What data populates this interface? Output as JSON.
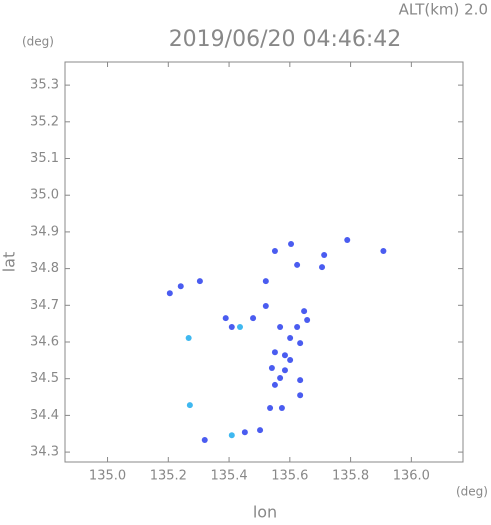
{
  "chart_data": {
    "type": "scatter",
    "title": "2019/06/20 04:46:42",
    "subtitle": "ALT(km) 2.0",
    "y_unit": "(deg)",
    "x_unit": "(deg)",
    "xlabel": "lon",
    "ylabel": "lat",
    "xlim": [
      134.86,
      136.17
    ],
    "ylim": [
      34.273,
      35.363
    ],
    "xticks": [
      {
        "value": 135,
        "label": "135.0"
      },
      135.2,
      135.4,
      135.6,
      135.8,
      {
        "value": 136,
        "label": "136.0"
      }
    ],
    "yticks": [
      34.3,
      34.4,
      34.5,
      34.6,
      34.7,
      34.8,
      34.9,
      {
        "value": 35,
        "label": "35.0"
      },
      35.1,
      35.2,
      35.3
    ],
    "series": [
      {
        "color": "#4a5cf0",
        "x": [
          135.205,
          135.241,
          135.304,
          135.521,
          135.551,
          135.604,
          135.624,
          135.706,
          135.713,
          135.789,
          135.908,
          135.389,
          135.409,
          135.479,
          135.521,
          135.647,
          135.568,
          135.624,
          135.551,
          135.584,
          135.601,
          135.634,
          135.541,
          135.568,
          135.584,
          135.634,
          135.551,
          135.634,
          135.535,
          135.574,
          135.601,
          135.657,
          135.32,
          135.502,
          135.452
        ],
        "y": [
          34.733,
          34.752,
          34.766,
          34.766,
          34.848,
          34.867,
          34.81,
          34.804,
          34.837,
          34.878,
          34.848,
          34.665,
          34.641,
          34.665,
          34.698,
          34.684,
          34.641,
          34.641,
          34.572,
          34.564,
          34.611,
          34.597,
          34.529,
          34.502,
          34.523,
          34.496,
          34.483,
          34.455,
          34.42,
          34.42,
          34.551,
          34.66,
          34.333,
          34.36,
          34.354
        ]
      },
      {
        "color": "#3fb8f0",
        "x": [
          135.267,
          135.271,
          135.409,
          135.436
        ],
        "y": [
          34.611,
          34.428,
          34.346,
          34.641
        ]
      }
    ]
  }
}
